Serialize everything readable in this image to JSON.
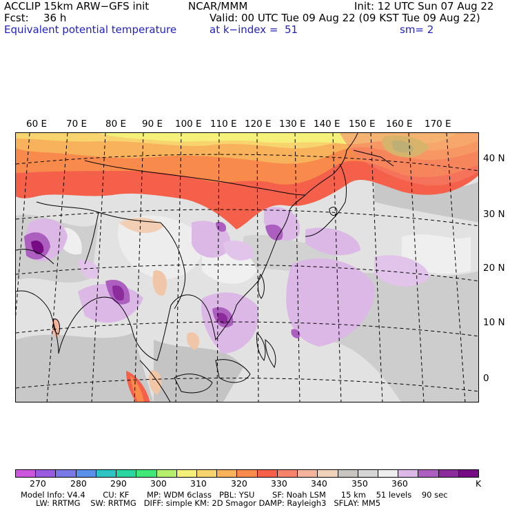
{
  "header": {
    "model": "ACCLIP 15km ARW−GFS init",
    "fcst_label": "Fcst:",
    "fcst_value": "36 h",
    "field_name": "Equivalent potential temperature",
    "org": "NCAR/MMM",
    "valid": "Valid: 00 UTC Tue 09 Aug 22 (09 KST Tue 09 Aug 22)",
    "init": "Init: 12 UTC Sun 07 Aug 22",
    "level": "at k−index =  51",
    "smoothing": "sm= 2"
  },
  "map": {
    "lon_labels": [
      "60 E",
      "70 E",
      "80 E",
      "90 E",
      "100 E",
      "110 E",
      "120 E",
      "130 E",
      "140 E",
      "150 E",
      "160 E",
      "170 E"
    ],
    "lat_labels": [
      "40 N",
      "30 N",
      "20 N",
      "10 N",
      "0"
    ]
  },
  "colorbar": {
    "colors": [
      "#cc55dd",
      "#9a5ae0",
      "#7878e6",
      "#5a90ea",
      "#2fc4c4",
      "#2ad6a0",
      "#40e878",
      "#b4f06e",
      "#f4f07a",
      "#f8d46e",
      "#f8b25c",
      "#f88a4c",
      "#f4604a",
      "#f6826a",
      "#f4b49c",
      "#f0d2b8",
      "#c8c4c0",
      "#d6d6d6",
      "#eeeeee",
      "#dcb8e6",
      "#ad5fc0",
      "#8c2c9c",
      "#760b84"
    ],
    "ticks": [
      "270",
      "280",
      "290",
      "300",
      "310",
      "320",
      "330",
      "340",
      "350",
      "360"
    ],
    "unit": "K"
  },
  "footer": {
    "line1": "Model Info: V4.4       CU: KF       MP: WDM 6class   PBL: YSU       SF: Noah LSM      15 km    51 levels    90 sec",
    "line2": "LW: RRTMG    SW: RRTMG   DIFF: simple KM: 2D Smagor DAMP: Rayleigh3   SFLAY: MM5"
  }
}
